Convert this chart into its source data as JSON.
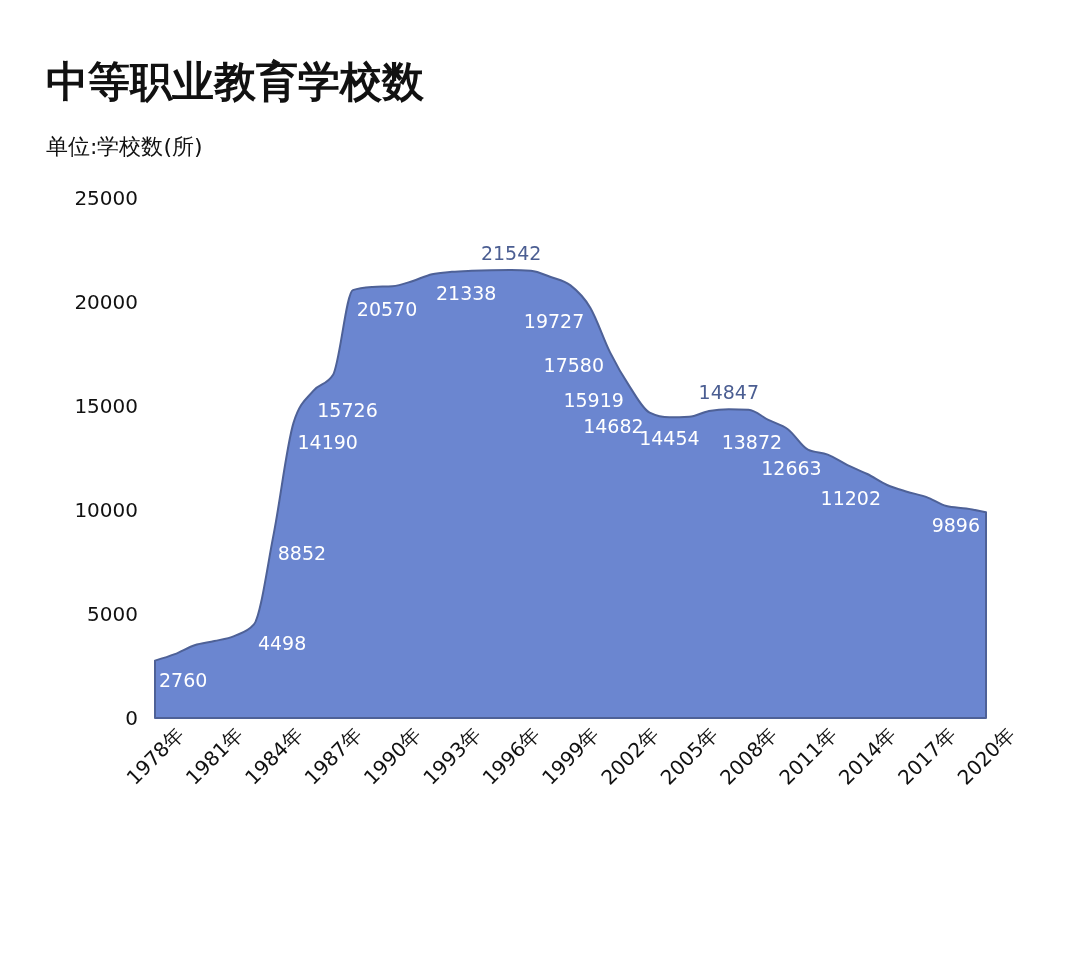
{
  "chart_data": {
    "type": "area",
    "title": "中等职业教育学校数",
    "subtitle": "单位:学校数(所)",
    "categories": [
      "1978年",
      null,
      null,
      "1981年",
      null,
      null,
      "1984年",
      null,
      null,
      "1987年",
      null,
      null,
      "1990年",
      null,
      null,
      "1993年",
      null,
      null,
      "1996年",
      null,
      null,
      "1999年",
      null,
      null,
      "2002年",
      null,
      null,
      "2005年",
      null,
      null,
      "2008年",
      null,
      null,
      "2011年",
      null,
      null,
      "2014年",
      null,
      null,
      "2017年",
      null,
      null,
      "2020年"
    ],
    "series": [
      {
        "color": "#6b86d0",
        "values": [
          2760,
          3070,
          3500,
          3700,
          3940,
          4498,
          8852,
          14190,
          15726,
          16500,
          20570,
          20720,
          20760,
          21000,
          21338,
          21450,
          21500,
          21530,
          21542,
          21500,
          21200,
          20800,
          19727,
          17580,
          15919,
          14682,
          14454,
          14480,
          14760,
          14847,
          14820,
          14330,
          13872,
          12900,
          12663,
          12160,
          11730,
          11202,
          10880,
          10620,
          10190,
          10070,
          9896
        ],
        "value_labels": [
          "2760",
          null,
          null,
          null,
          null,
          "4498",
          "8852",
          "14190",
          "15726",
          null,
          "20570",
          null,
          null,
          null,
          "21338",
          null,
          null,
          null,
          "21542",
          null,
          null,
          null,
          "19727",
          "17580",
          "15919",
          "14682",
          "14454",
          null,
          null,
          "14847",
          null,
          null,
          "13872",
          null,
          "12663",
          null,
          null,
          "11202",
          null,
          null,
          null,
          null,
          "9896"
        ]
      }
    ],
    "ylim": [
      0,
      25000
    ],
    "yticks": [
      0,
      5000,
      10000,
      15000,
      20000,
      25000
    ],
    "grid": false
  }
}
